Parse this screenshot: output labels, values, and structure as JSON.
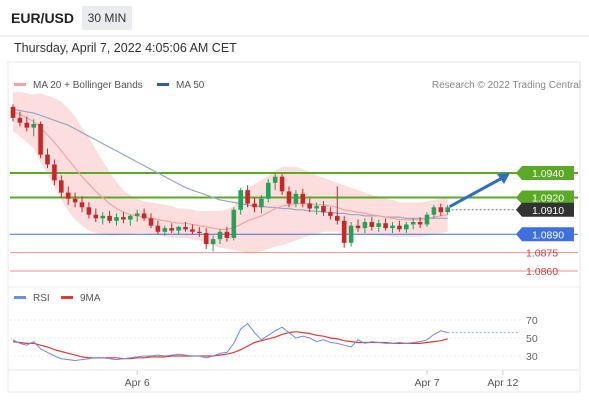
{
  "header": {
    "symbol": "EUR/USD",
    "timeframe": "30 MIN",
    "datetime": "Thursday, April 7, 2022 4:05:06 AM CET"
  },
  "legend": {
    "items": [
      {
        "label": "MA 20 + Bollinger Bands",
        "color": "#f4a3a3"
      },
      {
        "label": "MA 50",
        "color": "#2f5c9b"
      }
    ],
    "credit": "Research © 2022 Trading Central"
  },
  "chart_data": [
    {
      "type": "candlestick",
      "series_colors": {
        "up": "#27a05a",
        "down": "#c62828",
        "ma20": "#f4a3a3",
        "ma50": "#9aa6c6",
        "bands": "#fbd3d3"
      },
      "level_lines": [
        {
          "value": 1.094,
          "label": "1.0940",
          "color": "#5aaa26",
          "style": "green"
        },
        {
          "value": 1.092,
          "label": "1.0920",
          "color": "#5aaa26",
          "style": "green"
        },
        {
          "value": 1.091,
          "label": "1.0910",
          "color": "#333333",
          "style": "current"
        },
        {
          "value": 1.089,
          "label": "1.0890",
          "color": "#3f6fe0",
          "style": "blue"
        },
        {
          "value": 1.0875,
          "label": "1.0875",
          "color": "#e53935",
          "style": "red"
        },
        {
          "value": 1.086,
          "label": "1.0860",
          "color": "#e53935",
          "style": "red"
        }
      ],
      "candles": [
        [
          1.0994,
          1.0996,
          1.0982,
          1.0985
        ],
        [
          1.0985,
          1.099,
          1.0978,
          1.0981
        ],
        [
          1.0981,
          1.0986,
          1.0974,
          1.0977
        ],
        [
          1.0977,
          1.0984,
          1.097,
          1.098
        ],
        [
          1.098,
          1.0982,
          1.0952,
          1.0955
        ],
        [
          1.0955,
          1.096,
          1.0944,
          1.0947
        ],
        [
          1.0947,
          1.0951,
          1.093,
          1.0934
        ],
        [
          1.0934,
          1.0938,
          1.092,
          1.0924
        ],
        [
          1.0924,
          1.0929,
          1.0914,
          1.0919
        ],
        [
          1.0919,
          1.0924,
          1.0912,
          1.0916
        ],
        [
          1.0916,
          1.0921,
          1.0908,
          1.0912
        ],
        [
          1.0912,
          1.0916,
          1.0903,
          1.0906
        ],
        [
          1.0906,
          1.0911,
          1.09,
          1.0903
        ],
        [
          1.0903,
          1.0908,
          1.0898,
          1.0905
        ],
        [
          1.0905,
          1.0909,
          1.0899,
          1.0901
        ],
        [
          1.0901,
          1.0907,
          1.0897,
          1.0904
        ],
        [
          1.0904,
          1.0908,
          1.0899,
          1.0902
        ],
        [
          1.0902,
          1.0906,
          1.0897,
          1.0905
        ],
        [
          1.0905,
          1.091,
          1.09,
          1.0907
        ],
        [
          1.0907,
          1.0911,
          1.0901,
          1.0903
        ],
        [
          1.0903,
          1.0907,
          1.0895,
          1.0897
        ],
        [
          1.0897,
          1.0901,
          1.089,
          1.0892
        ],
        [
          1.0892,
          1.0897,
          1.0889,
          1.0895
        ],
        [
          1.0895,
          1.0899,
          1.0891,
          1.0893
        ],
        [
          1.0893,
          1.0897,
          1.089,
          1.0896
        ],
        [
          1.0896,
          1.09,
          1.0892,
          1.0894
        ],
        [
          1.0894,
          1.0898,
          1.089,
          1.0892
        ],
        [
          1.0892,
          1.0896,
          1.0888,
          1.0891
        ],
        [
          1.0891,
          1.0895,
          1.0878,
          1.0882
        ],
        [
          1.0882,
          1.0889,
          1.0876,
          1.0886
        ],
        [
          1.0886,
          1.0894,
          1.0882,
          1.0892
        ],
        [
          1.0892,
          1.0896,
          1.0884,
          1.0887
        ],
        [
          1.0887,
          1.0912,
          1.0885,
          1.091
        ],
        [
          1.091,
          1.0928,
          1.0906,
          1.0926
        ],
        [
          1.0926,
          1.093,
          1.0912,
          1.0915
        ],
        [
          1.0915,
          1.092,
          1.0908,
          1.0912
        ],
        [
          1.0912,
          1.0922,
          1.0907,
          1.0919
        ],
        [
          1.0919,
          1.0935,
          1.0916,
          1.0932
        ],
        [
          1.0932,
          1.094,
          1.0926,
          1.0937
        ],
        [
          1.0937,
          1.0939,
          1.0922,
          1.0925
        ],
        [
          1.0925,
          1.0929,
          1.0912,
          1.0915
        ],
        [
          1.0915,
          1.0926,
          1.0912,
          1.0923
        ],
        [
          1.0923,
          1.0927,
          1.0912,
          1.0915
        ],
        [
          1.0915,
          1.0919,
          1.0908,
          1.0911
        ],
        [
          1.0911,
          1.0916,
          1.0906,
          1.0913
        ],
        [
          1.0913,
          1.0917,
          1.0905,
          1.0908
        ],
        [
          1.0908,
          1.0912,
          1.0902,
          1.0905
        ],
        [
          1.0905,
          1.0929,
          1.0898,
          1.0901
        ],
        [
          1.0901,
          1.0905,
          1.0879,
          1.0883
        ],
        [
          1.0883,
          1.09,
          1.088,
          1.0897
        ],
        [
          1.0897,
          1.0902,
          1.0892,
          1.0895
        ],
        [
          1.0895,
          1.0903,
          1.0891,
          1.09
        ],
        [
          1.09,
          1.0904,
          1.0893,
          1.0896
        ],
        [
          1.0896,
          1.0902,
          1.0892,
          1.0899
        ],
        [
          1.0899,
          1.0903,
          1.0893,
          1.0895
        ],
        [
          1.0895,
          1.09,
          1.0891,
          1.0897
        ],
        [
          1.0897,
          1.0901,
          1.0892,
          1.0894
        ],
        [
          1.0894,
          1.09,
          1.0891,
          1.0898
        ],
        [
          1.0898,
          1.0903,
          1.0894,
          1.09
        ],
        [
          1.09,
          1.0904,
          1.0895,
          1.0898
        ],
        [
          1.0898,
          1.0908,
          1.0896,
          1.0906
        ],
        [
          1.0906,
          1.0914,
          1.0903,
          1.0912
        ],
        [
          1.0912,
          1.0915,
          1.0905,
          1.0908
        ],
        [
          1.0908,
          1.0914,
          1.0906,
          1.0912
        ]
      ],
      "ma20": [
        1.099,
        1.0988,
        1.0985,
        1.0982,
        1.0977,
        1.0971,
        1.0965,
        1.0958,
        1.0951,
        1.0944,
        1.0937,
        1.0931,
        1.0925,
        1.092,
        1.0915,
        1.0911,
        1.0908,
        1.0906,
        1.0905,
        1.0904,
        1.0903,
        1.0902,
        1.0901,
        1.09,
        1.0899,
        1.0899,
        1.0898,
        1.0897,
        1.0896,
        1.0895,
        1.0894,
        1.0894,
        1.0895,
        1.0898,
        1.0901,
        1.0903,
        1.0905,
        1.0908,
        1.0911,
        1.0913,
        1.0914,
        1.0915,
        1.0915,
        1.0915,
        1.0914,
        1.0914,
        1.0913,
        1.0912,
        1.091,
        1.0909,
        1.0908,
        1.0907,
        1.0906,
        1.0905,
        1.0904,
        1.0903,
        1.0902,
        1.0902,
        1.0902,
        1.0902,
        1.0903,
        1.0904,
        1.0905,
        1.0906
      ],
      "band_width": [
        0.0016,
        0.0018,
        0.002,
        0.0022,
        0.0028,
        0.0032,
        0.0036,
        0.004,
        0.0042,
        0.0042,
        0.004,
        0.0038,
        0.0034,
        0.003,
        0.0026,
        0.0022,
        0.0018,
        0.0016,
        0.0014,
        0.0013,
        0.0013,
        0.0013,
        0.0013,
        0.0013,
        0.0012,
        0.0012,
        0.0012,
        0.0012,
        0.0013,
        0.0014,
        0.0015,
        0.0016,
        0.0018,
        0.0022,
        0.0026,
        0.0028,
        0.0029,
        0.003,
        0.0031,
        0.0032,
        0.0031,
        0.003,
        0.0028,
        0.0026,
        0.0024,
        0.0022,
        0.0021,
        0.002,
        0.002,
        0.0019,
        0.0018,
        0.0017,
        0.0016,
        0.0016,
        0.0015,
        0.0015,
        0.0014,
        0.0014,
        0.0014,
        0.0014,
        0.0014,
        0.0014,
        0.0014,
        0.0014
      ],
      "ma50": [
        1.0992,
        1.0991,
        1.099,
        1.0989,
        1.0987,
        1.0985,
        1.0983,
        1.0981,
        1.0979,
        1.0976,
        1.0973,
        1.097,
        1.0967,
        1.0964,
        1.0961,
        1.0958,
        1.0955,
        1.0952,
        1.0949,
        1.0946,
        1.0943,
        1.094,
        1.0937,
        1.0934,
        1.0931,
        1.0928,
        1.0926,
        1.0924,
        1.0922,
        1.092,
        1.0918,
        1.0917,
        1.0916,
        1.0915,
        1.0914,
        1.0913,
        1.0913,
        1.0912,
        1.0912,
        1.0911,
        1.0911,
        1.091,
        1.091,
        1.0909,
        1.0909,
        1.0908,
        1.0908,
        1.0907,
        1.0907,
        1.0906,
        1.0906,
        1.0905,
        1.0905,
        1.0905,
        1.0904,
        1.0904,
        1.0904,
        1.0903,
        1.0903,
        1.0903,
        1.0903,
        1.0903,
        1.0903,
        1.0903
      ],
      "arrow": {
        "from_value": 1.0913,
        "to_value": 1.094
      }
    },
    {
      "type": "line",
      "legend": [
        {
          "label": "RSI",
          "color": "#6a8fe0"
        },
        {
          "label": "9MA",
          "color": "#e53935"
        }
      ],
      "y_ticks": [
        "70",
        "50",
        "30"
      ],
      "ylim": [
        20,
        80
      ],
      "rsi": [
        48,
        44,
        42,
        46,
        38,
        34,
        30,
        27,
        26,
        25,
        26,
        27,
        28,
        28,
        27,
        26,
        27,
        28,
        29,
        30,
        30,
        31,
        30,
        31,
        32,
        31,
        30,
        30,
        28,
        30,
        33,
        34,
        44,
        60,
        66,
        56,
        48,
        53,
        58,
        62,
        56,
        50,
        52,
        50,
        46,
        48,
        45,
        44,
        42,
        40,
        48,
        44,
        46,
        45,
        44,
        44,
        45,
        44,
        45,
        46,
        48,
        54,
        58,
        56
      ],
      "ma9": [
        46,
        45,
        44,
        44,
        42,
        40,
        37,
        35,
        33,
        31,
        29,
        28,
        28,
        28,
        28,
        28,
        27,
        27,
        28,
        28,
        29,
        29,
        29,
        30,
        30,
        30,
        30,
        30,
        30,
        30,
        31,
        32,
        34,
        37,
        41,
        45,
        47,
        49,
        51,
        54,
        56,
        57,
        56,
        55,
        53,
        52,
        50,
        49,
        47,
        46,
        45,
        45,
        45,
        45,
        45,
        44,
        44,
        44,
        44,
        44,
        45,
        46,
        47,
        49
      ],
      "rsi_current": 56
    }
  ],
  "x_axis": {
    "ticks": [
      {
        "label": "Apr 6",
        "index": 18
      },
      {
        "label": "Apr 7",
        "index": 60
      },
      {
        "label": "Apr 12",
        "index": 71
      }
    ]
  }
}
